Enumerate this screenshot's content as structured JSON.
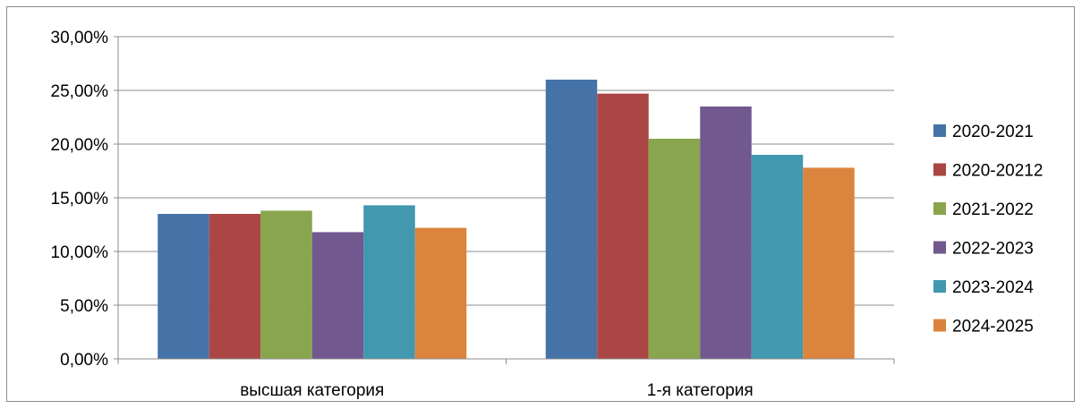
{
  "chart_data": {
    "type": "bar",
    "categories": [
      "высшая категория",
      "1-я категория"
    ],
    "series": [
      {
        "name": "2020-2021",
        "color": "#4572A7",
        "values": [
          13.5,
          26.0
        ]
      },
      {
        "name": "2020-20212",
        "color": "#AA4643",
        "values": [
          13.5,
          24.7
        ]
      },
      {
        "name": "2021-2022",
        "color": "#89A54E",
        "values": [
          13.8,
          20.5
        ]
      },
      {
        "name": "2022-2023",
        "color": "#71588F",
        "values": [
          11.8,
          23.5
        ]
      },
      {
        "name": "2023-2024",
        "color": "#4198AF",
        "values": [
          14.3,
          19.0
        ]
      },
      {
        "name": "2024-2025",
        "color": "#DB843D",
        "values": [
          12.2,
          17.8
        ]
      }
    ],
    "yticks": [
      "0,00%",
      "5,00%",
      "10,00%",
      "15,00%",
      "20,00%",
      "25,00%",
      "30,00%"
    ],
    "ylim": [
      0,
      30
    ],
    "grid": true,
    "legend_position": "right",
    "title": "",
    "xlabel": "",
    "ylabel": ""
  }
}
